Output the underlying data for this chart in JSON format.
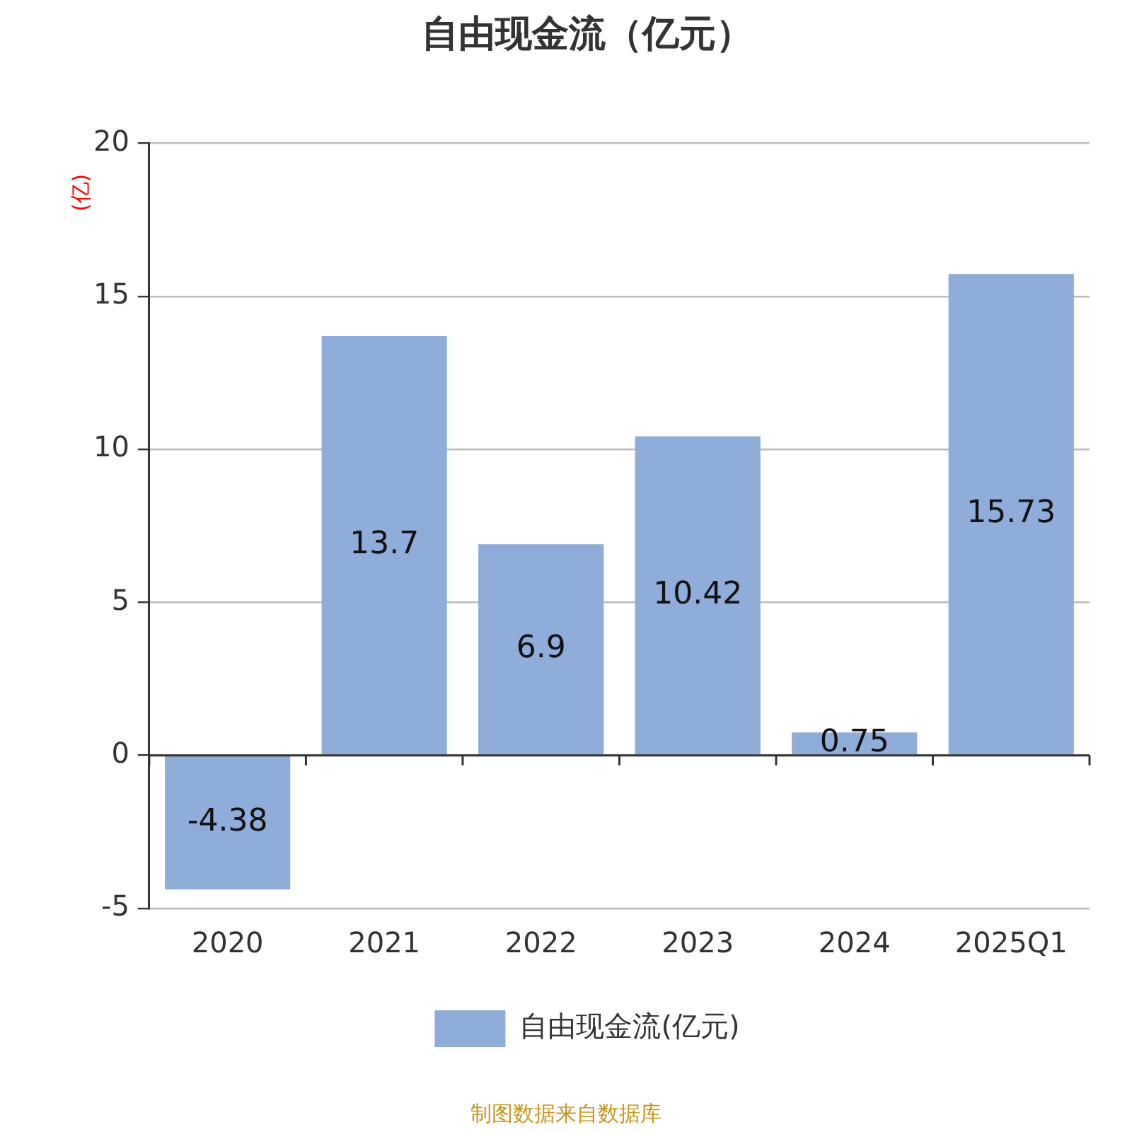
{
  "chart_data": {
    "type": "bar",
    "title": "自由现金流（亿元）",
    "ylabel": "(亿)",
    "categories": [
      "2020",
      "2021",
      "2022",
      "2023",
      "2024",
      "2025Q1"
    ],
    "series": [
      {
        "name": "自由现金流(亿元)",
        "color": "#8eadd9",
        "values": [
          -4.38,
          13.7,
          6.9,
          10.42,
          0.75,
          15.73
        ]
      }
    ],
    "ylim": [
      -5,
      20
    ],
    "yticks": [
      -5,
      0,
      5,
      10,
      15,
      20
    ],
    "grid": "y",
    "legend": "bottom",
    "data_labels": true,
    "annotations": [
      "制图数据来自数据库"
    ]
  }
}
